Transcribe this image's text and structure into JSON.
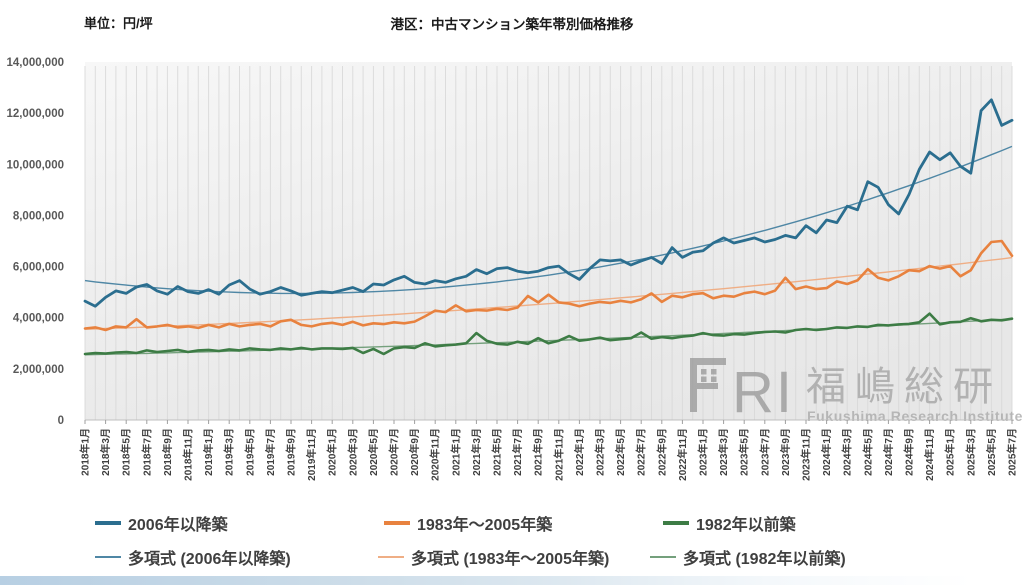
{
  "page": {
    "unit_label": "単位：円/坪",
    "title": "港区：中古マンション築年帯別価格推移"
  },
  "watermark": {
    "logo_letters": "RI",
    "name_ja": "福嶋総研",
    "name_en": "Fukushima Research Institute"
  },
  "chart_data": {
    "type": "line",
    "title": "港区：中古マンション築年帯別価格推移",
    "unit": "円/坪",
    "x_start": "2018年1月",
    "x_end": "2025年7月",
    "x_interval": "monthly",
    "n_points": 91,
    "ylim": [
      0,
      14000000
    ],
    "ytick_step": 2000000,
    "ytick_labels": [
      "0",
      "2,000,000",
      "4,000,000",
      "6,000,000",
      "8,000,000",
      "10,000,000",
      "12,000,000",
      "14,000,000"
    ],
    "xtick_every_n_points": 2,
    "xtick_labels": [
      "2018年1月",
      "2018年3月",
      "2018年5月",
      "2018年7月",
      "2018年9月",
      "2018年11月",
      "2019年1月",
      "2019年3月",
      "2019年5月",
      "2019年7月",
      "2019年9月",
      "2019年11月",
      "2020年1月",
      "2020年3月",
      "2020年5月",
      "2020年7月",
      "2020年9月",
      "2020年11月",
      "2021年1月",
      "2021年3月",
      "2021年5月",
      "2021年7月",
      "2021年9月",
      "2021年11月",
      "2022年1月",
      "2022年3月",
      "2022年5月",
      "2022年7月",
      "2022年9月",
      "2022年11月",
      "2023年1月",
      "2023年3月",
      "2023年5月",
      "2023年7月",
      "2023年9月",
      "2023年11月",
      "2024年1月",
      "2024年3月",
      "2024年5月",
      "2024年7月",
      "2024年9月",
      "2024年11月",
      "2025年1月",
      "2025年3月",
      "2025年5月",
      "2025年7月"
    ],
    "grid": "vertical-monthly",
    "legend_position": "bottom",
    "series": [
      {
        "name": "2006年以降築",
        "color": "#2b6e8f",
        "values": [
          4650000,
          4450000,
          4800000,
          5050000,
          4950000,
          5200000,
          5300000,
          5050000,
          4920000,
          5220000,
          5020000,
          4950000,
          5100000,
          4920000,
          5280000,
          5450000,
          5120000,
          4920000,
          5020000,
          5180000,
          5050000,
          4880000,
          4950000,
          5020000,
          4980000,
          5080000,
          5180000,
          5020000,
          5320000,
          5280000,
          5480000,
          5620000,
          5380000,
          5320000,
          5450000,
          5380000,
          5520000,
          5620000,
          5880000,
          5720000,
          5920000,
          5960000,
          5820000,
          5760000,
          5820000,
          5960000,
          6020000,
          5720000,
          5500000,
          5920000,
          6260000,
          6220000,
          6260000,
          6060000,
          6220000,
          6360000,
          6120000,
          6740000,
          6360000,
          6560000,
          6620000,
          6920000,
          7120000,
          6920000,
          7020000,
          7120000,
          6960000,
          7060000,
          7220000,
          7120000,
          7600000,
          7320000,
          7820000,
          7720000,
          8360000,
          8220000,
          9320000,
          9100000,
          8420000,
          8060000,
          8820000,
          9800000,
          10480000,
          10180000,
          10450000,
          9920000,
          9650000,
          12100000,
          12520000,
          11520000,
          11720000
        ]
      },
      {
        "name": "1983年〜2005年築",
        "color": "#e8823f",
        "values": [
          3580000,
          3620000,
          3520000,
          3660000,
          3620000,
          3940000,
          3620000,
          3660000,
          3720000,
          3620000,
          3660000,
          3600000,
          3720000,
          3620000,
          3760000,
          3660000,
          3720000,
          3760000,
          3660000,
          3860000,
          3920000,
          3720000,
          3660000,
          3760000,
          3800000,
          3720000,
          3840000,
          3700000,
          3780000,
          3750000,
          3820000,
          3780000,
          3850000,
          4050000,
          4280000,
          4220000,
          4480000,
          4250000,
          4300000,
          4280000,
          4350000,
          4300000,
          4400000,
          4850000,
          4600000,
          4900000,
          4600000,
          4550000,
          4450000,
          4550000,
          4620000,
          4580000,
          4660000,
          4600000,
          4720000,
          4950000,
          4620000,
          4860000,
          4800000,
          4920000,
          4960000,
          4760000,
          4860000,
          4820000,
          4960000,
          5020000,
          4920000,
          5060000,
          5560000,
          5120000,
          5220000,
          5120000,
          5160000,
          5420000,
          5320000,
          5460000,
          5900000,
          5560000,
          5460000,
          5620000,
          5860000,
          5820000,
          6020000,
          5920000,
          6020000,
          5620000,
          5860000,
          6520000,
          6960000,
          7000000,
          6420000
        ]
      },
      {
        "name": "1982年以前築",
        "color": "#3d7c45",
        "values": [
          2580000,
          2620000,
          2600000,
          2640000,
          2660000,
          2620000,
          2720000,
          2660000,
          2700000,
          2740000,
          2660000,
          2720000,
          2740000,
          2700000,
          2760000,
          2720000,
          2800000,
          2760000,
          2740000,
          2800000,
          2760000,
          2820000,
          2760000,
          2800000,
          2800000,
          2780000,
          2820000,
          2620000,
          2780000,
          2580000,
          2800000,
          2850000,
          2820000,
          3000000,
          2880000,
          2920000,
          2950000,
          3000000,
          3400000,
          3100000,
          2980000,
          2950000,
          3060000,
          2980000,
          3200000,
          3000000,
          3100000,
          3280000,
          3100000,
          3150000,
          3220000,
          3120000,
          3160000,
          3200000,
          3420000,
          3180000,
          3240000,
          3200000,
          3260000,
          3300000,
          3400000,
          3320000,
          3300000,
          3360000,
          3340000,
          3400000,
          3440000,
          3460000,
          3420000,
          3520000,
          3560000,
          3520000,
          3560000,
          3620000,
          3600000,
          3660000,
          3640000,
          3720000,
          3700000,
          3740000,
          3760000,
          3820000,
          4160000,
          3740000,
          3820000,
          3840000,
          3980000,
          3860000,
          3920000,
          3900000,
          3960000
        ]
      }
    ],
    "trendlines": [
      {
        "name": "多項式 (2006年以降築)",
        "color": "#4f87a5",
        "poly_coeffs_million_yen": [
          5.45,
          -0.04881,
          0.0011905
        ]
      },
      {
        "name": "多項式 (1983年〜2005年築)",
        "color": "#efae85",
        "poly_coeffs_million_yen": [
          3.55,
          0.01333,
          0.0001975
        ]
      },
      {
        "name": "多項式 (1982年以前築)",
        "color": "#74a07c",
        "poly_coeffs_million_yen": [
          2.55,
          0.00889,
          7.41e-05
        ]
      }
    ]
  }
}
